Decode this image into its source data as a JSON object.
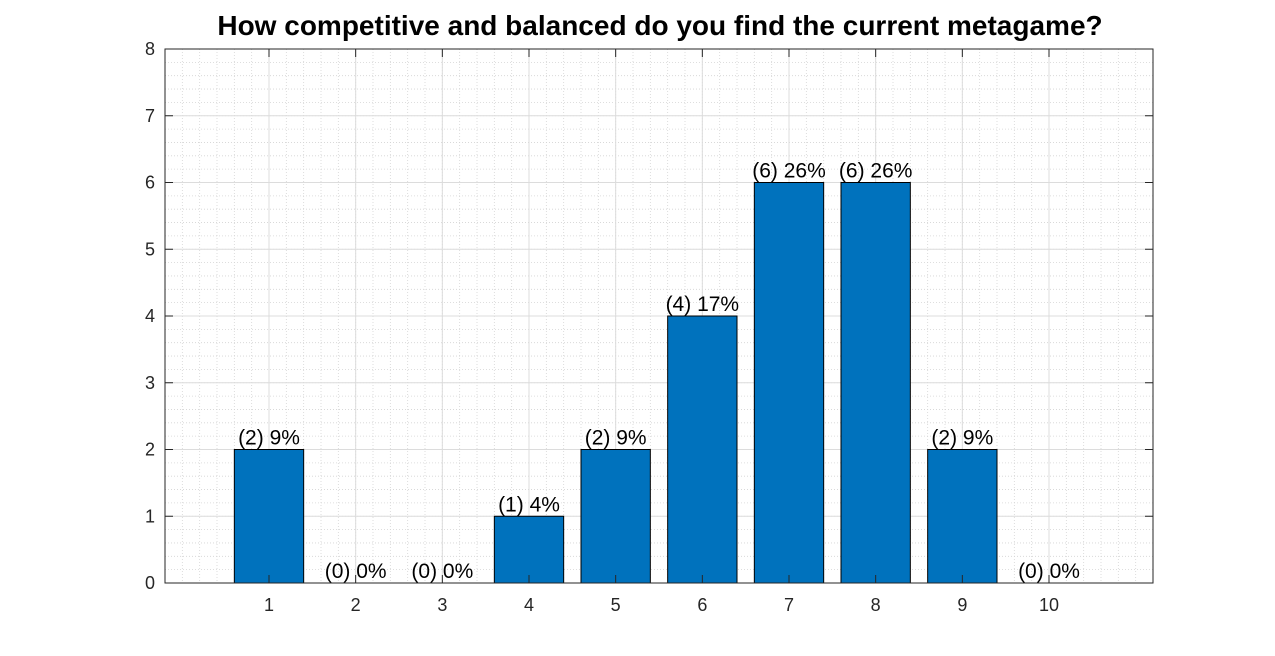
{
  "chart_data": {
    "type": "bar",
    "title": "How competitive and balanced do you find the current metagame?",
    "xlabel": "",
    "ylabel": "",
    "categories": [
      "1",
      "2",
      "3",
      "4",
      "5",
      "6",
      "7",
      "8",
      "9",
      "10"
    ],
    "values": [
      2,
      0,
      0,
      1,
      2,
      4,
      6,
      6,
      2,
      0
    ],
    "data_labels": [
      "(2) 9%",
      "(0) 0%",
      "(0) 0%",
      "(1) 4%",
      "(2) 9%",
      "(4) 17%",
      "(6) 26%",
      "(6) 26%",
      "(2) 9%",
      "(0) 0%"
    ],
    "xlim": [
      -0.2,
      11.2
    ],
    "ylim": [
      0,
      8
    ],
    "yticks": [
      "0",
      "1",
      "2",
      "3",
      "4",
      "5",
      "6",
      "7",
      "8"
    ],
    "grid": true,
    "minor_grid": true,
    "bar_color": "#0072BD"
  }
}
